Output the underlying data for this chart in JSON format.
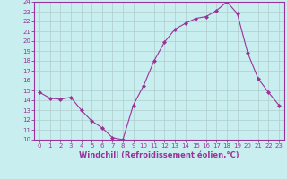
{
  "x": [
    0,
    1,
    2,
    3,
    4,
    5,
    6,
    7,
    8,
    9,
    10,
    11,
    12,
    13,
    14,
    15,
    16,
    17,
    18,
    19,
    20,
    21,
    22,
    23
  ],
  "y": [
    14.8,
    14.2,
    14.1,
    14.3,
    13.0,
    11.9,
    11.2,
    10.2,
    10.0,
    13.5,
    15.5,
    18.0,
    19.9,
    21.2,
    21.8,
    22.3,
    22.5,
    23.1,
    24.0,
    22.8,
    18.8,
    16.2,
    14.8,
    13.5
  ],
  "line_color": "#993399",
  "marker": "D",
  "marker_size": 2,
  "bg_color": "#c8eef0",
  "grid_color": "#b0cccc",
  "xlabel": "Windchill (Refroidissement éolien,°C)",
  "xlim": [
    -0.5,
    23.5
  ],
  "ylim": [
    10,
    24
  ],
  "yticks": [
    10,
    11,
    12,
    13,
    14,
    15,
    16,
    17,
    18,
    19,
    20,
    21,
    22,
    23,
    24
  ],
  "xticks": [
    0,
    1,
    2,
    3,
    4,
    5,
    6,
    7,
    8,
    9,
    10,
    11,
    12,
    13,
    14,
    15,
    16,
    17,
    18,
    19,
    20,
    21,
    22,
    23
  ],
  "tick_color": "#993399",
  "label_color": "#993399",
  "tick_fontsize": 5.0,
  "xlabel_fontsize": 6.0,
  "spine_color": "#993399"
}
